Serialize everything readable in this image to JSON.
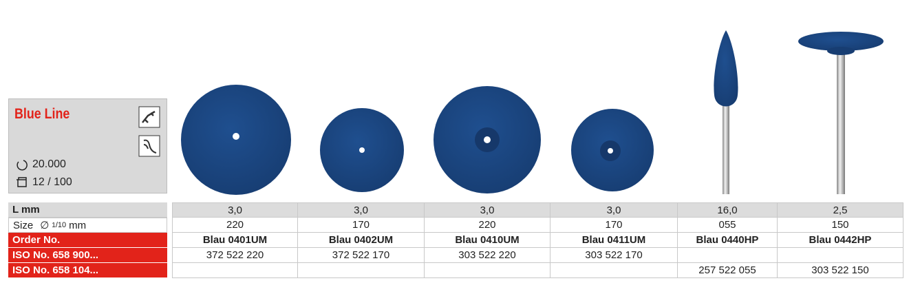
{
  "header": {
    "title": "Blue Line",
    "speed": "20.000",
    "pack": "12 / 100"
  },
  "table": {
    "rows": [
      {
        "label": "L mm",
        "cells": [
          "3,0",
          "3,0",
          "3,0",
          "3,0",
          "16,0",
          "2,5"
        ]
      },
      {
        "label": "Size",
        "unit_parts": [
          "∅",
          "1",
          "/10",
          "mm"
        ],
        "cells": [
          "220",
          "170",
          "220",
          "170",
          "055",
          "150"
        ]
      },
      {
        "label": "Order No.",
        "cells": [
          "Blau 0401UM",
          "Blau 0402UM",
          "Blau 0410UM",
          "Blau 0411UM",
          "Blau 0440HP",
          "Blau 0442HP"
        ]
      },
      {
        "label": "ISO No. 658 900...",
        "cells": [
          "372 522 220",
          "372 522 170",
          "303 522 220",
          "303 522 170",
          null,
          null
        ]
      },
      {
        "label": "ISO No. 658 104...",
        "cells": [
          null,
          null,
          null,
          null,
          "257 522 055",
          "303 522 150"
        ]
      }
    ]
  }
}
